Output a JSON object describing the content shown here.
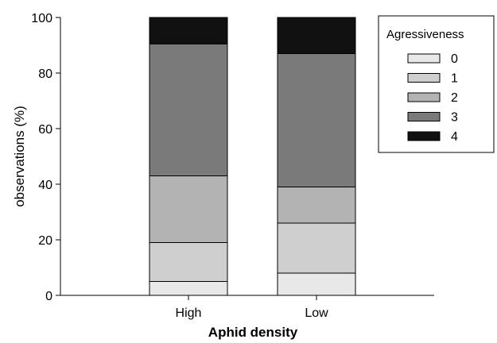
{
  "chart_data": {
    "type": "bar",
    "stacked": true,
    "categories": [
      "High",
      "Low"
    ],
    "series": [
      {
        "name": "0",
        "values": [
          5,
          8
        ],
        "color": "#e8e8e8"
      },
      {
        "name": "1",
        "values": [
          14,
          18
        ],
        "color": "#cfcfcf"
      },
      {
        "name": "2",
        "values": [
          24,
          13
        ],
        "color": "#b3b3b3"
      },
      {
        "name": "3",
        "values": [
          47.5,
          48
        ],
        "color": "#7a7a7a"
      },
      {
        "name": "4",
        "values": [
          9.5,
          13
        ],
        "color": "#111111"
      }
    ],
    "xlabel": "Aphid density",
    "ylabel": "observations (%)",
    "ylim": [
      0,
      100
    ],
    "yticks": [
      0,
      20,
      40,
      60,
      80,
      100
    ],
    "legend": {
      "title": "Agressiveness",
      "placement": "top-right"
    },
    "grid": false
  }
}
